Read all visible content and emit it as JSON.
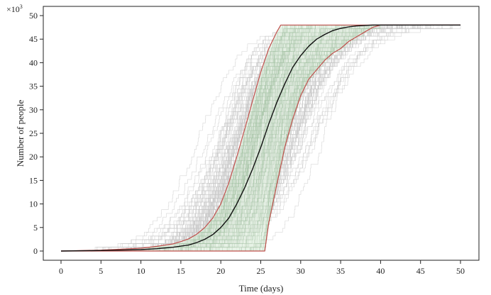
{
  "chart_data": {
    "type": "line",
    "xlabel": "Time (days)",
    "ylabel": "Number of people",
    "y_scale_note": "×10",
    "y_scale_exponent": "3",
    "xlim": [
      0,
      50
    ],
    "ylim": [
      0,
      50
    ],
    "x_ticks": [
      0,
      5,
      10,
      15,
      20,
      25,
      30,
      35,
      40,
      45,
      50
    ],
    "y_ticks": [
      0,
      5,
      10,
      15,
      20,
      25,
      30,
      35,
      40,
      45,
      50
    ],
    "grid": false,
    "colors": {
      "mean": "#111111",
      "envelope": "#c0504d",
      "band_fill": "#dfeedd",
      "simulations": "#c8c8c8",
      "band_lines": "#a8c4a8"
    },
    "series": [
      {
        "role": "mean",
        "x": [
          0,
          5,
          10,
          12,
          14,
          16,
          17,
          18,
          19,
          20,
          21,
          22,
          23,
          24,
          25,
          26,
          27,
          28,
          29,
          30,
          31,
          32,
          33,
          34,
          35,
          36,
          37,
          38,
          39,
          40,
          50
        ],
        "y": [
          0,
          0.1,
          0.3,
          0.5,
          0.8,
          1.3,
          1.8,
          2.5,
          3.5,
          5,
          7,
          10,
          13.5,
          17.5,
          22,
          27,
          31.5,
          35.5,
          39,
          41.5,
          43.5,
          45,
          46,
          46.8,
          47.3,
          47.6,
          47.8,
          47.9,
          48,
          48,
          48
        ]
      },
      {
        "role": "upper",
        "x": [
          0,
          5,
          10,
          12,
          14,
          15,
          16,
          17,
          18,
          19,
          20,
          21,
          22,
          23,
          24,
          25,
          26,
          27,
          27.5,
          40,
          50
        ],
        "y": [
          0,
          0.2,
          0.6,
          1,
          1.5,
          2,
          2.6,
          3.6,
          5,
          7,
          10,
          14.5,
          20,
          26,
          32,
          38,
          43,
          46.5,
          48,
          48,
          48
        ]
      },
      {
        "role": "lower",
        "x": [
          0,
          25.3,
          25.5,
          26,
          27,
          28,
          29,
          30,
          31,
          32,
          33,
          34,
          35,
          36,
          37,
          38,
          39,
          40,
          50
        ],
        "y": [
          0,
          0,
          0,
          6,
          14,
          22,
          28,
          33,
          36.5,
          38.5,
          40.5,
          42,
          43,
          44.5,
          45.5,
          46.5,
          47.5,
          48,
          48
        ]
      }
    ],
    "simulation_count": 220,
    "band_line_count": 70
  }
}
